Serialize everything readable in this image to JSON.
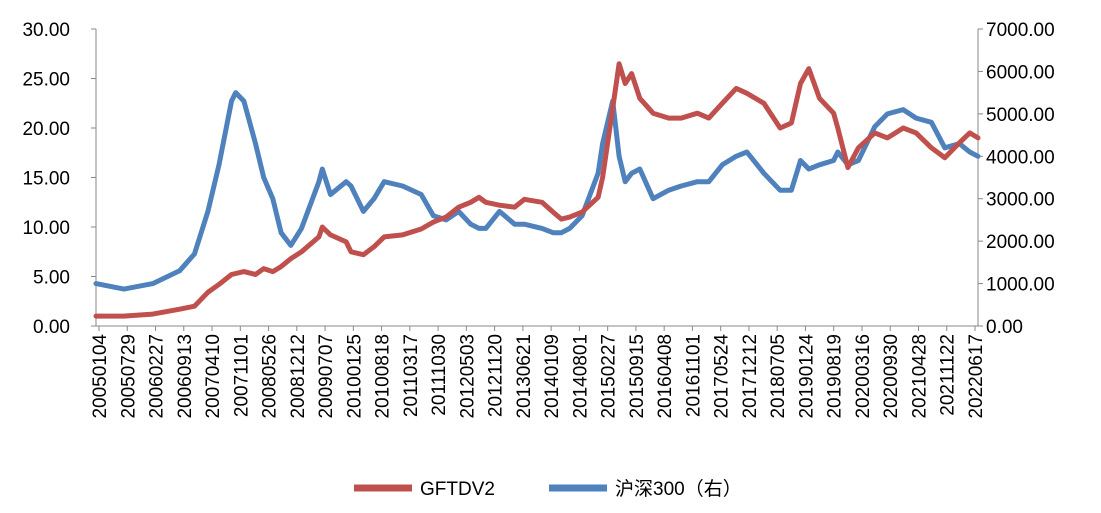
{
  "chart_data": {
    "type": "line",
    "title": "",
    "xlabel": "",
    "ylabel": "",
    "y2label": "",
    "grid": false,
    "legend_position": "bottom",
    "y_left": {
      "min": 0,
      "max": 30,
      "ticks": [
        "0.00",
        "5.00",
        "10.00",
        "15.00",
        "20.00",
        "25.00",
        "30.00"
      ]
    },
    "y_right": {
      "min": 0,
      "max": 7000,
      "ticks": [
        "0.00",
        "1000.00",
        "2000.00",
        "3000.00",
        "4000.00",
        "5000.00",
        "6000.00",
        "7000.00"
      ]
    },
    "x_tick_labels": [
      "20050104",
      "20050729",
      "20060227",
      "20060913",
      "20070410",
      "20071101",
      "20080526",
      "20081212",
      "20090707",
      "20100125",
      "20100818",
      "20110317",
      "20111030",
      "20120503",
      "20121120",
      "20130621",
      "20140109",
      "20140801",
      "20150227",
      "20150915",
      "20160408",
      "20161101",
      "20170524",
      "20171212",
      "20180705",
      "20190124",
      "20190819",
      "20200316",
      "20200930",
      "20210428",
      "20211122",
      "20220617"
    ],
    "series": [
      {
        "name": "GFTDV2",
        "axis": "left",
        "color": "#C0504D",
        "points": [
          [
            "20050104",
            1.0
          ],
          [
            "20050729",
            1.0
          ],
          [
            "20060227",
            1.2
          ],
          [
            "20060913",
            1.7
          ],
          [
            "20070101",
            2.0
          ],
          [
            "20070410",
            3.4
          ],
          [
            "20070701",
            4.2
          ],
          [
            "20071001",
            5.2
          ],
          [
            "20071101",
            5.3
          ],
          [
            "20080101",
            5.5
          ],
          [
            "20080326",
            5.2
          ],
          [
            "20080526",
            5.8
          ],
          [
            "20080801",
            5.5
          ],
          [
            "20081001",
            6.0
          ],
          [
            "20081212",
            6.8
          ],
          [
            "20090301",
            7.5
          ],
          [
            "20090707",
            9.0
          ],
          [
            "20090801",
            10.0
          ],
          [
            "20091001",
            9.2
          ],
          [
            "20100125",
            8.5
          ],
          [
            "20100301",
            7.5
          ],
          [
            "20100601",
            7.2
          ],
          [
            "20100818",
            8.0
          ],
          [
            "20101101",
            9.0
          ],
          [
            "20110317",
            9.2
          ],
          [
            "20110801",
            9.8
          ],
          [
            "20111030",
            10.5
          ],
          [
            "20120201",
            11.0
          ],
          [
            "20120503",
            12.0
          ],
          [
            "20120801",
            12.5
          ],
          [
            "20121001",
            13.0
          ],
          [
            "20121120",
            12.5
          ],
          [
            "20130301",
            12.2
          ],
          [
            "20130621",
            12.0
          ],
          [
            "20130901",
            12.8
          ],
          [
            "20140109",
            12.5
          ],
          [
            "20140401",
            11.5
          ],
          [
            "20140601",
            10.8
          ],
          [
            "20140801",
            11.0
          ],
          [
            "20141101",
            11.5
          ],
          [
            "20150227",
            13.0
          ],
          [
            "20150401",
            15.0
          ],
          [
            "20150615",
            22.0
          ],
          [
            "20150801",
            26.5
          ],
          [
            "20150915",
            24.5
          ],
          [
            "20151101",
            25.5
          ],
          [
            "20160101",
            23.0
          ],
          [
            "20160408",
            21.5
          ],
          [
            "20160801",
            21.0
          ],
          [
            "20161101",
            21.0
          ],
          [
            "20170301",
            21.5
          ],
          [
            "20170524",
            21.0
          ],
          [
            "20170901",
            22.5
          ],
          [
            "20171212",
            24.0
          ],
          [
            "20180301",
            23.5
          ],
          [
            "20180705",
            22.5
          ],
          [
            "20181101",
            20.0
          ],
          [
            "20190124",
            20.5
          ],
          [
            "20190401",
            24.5
          ],
          [
            "20190601",
            26.0
          ],
          [
            "20190819",
            23.0
          ],
          [
            "20191201",
            21.5
          ],
          [
            "20200101",
            20.0
          ],
          [
            "20200316",
            16.0
          ],
          [
            "20200601",
            18.0
          ],
          [
            "20200930",
            19.5
          ],
          [
            "20210101",
            19.0
          ],
          [
            "20210428",
            20.0
          ],
          [
            "20210801",
            19.5
          ],
          [
            "20211122",
            18.0
          ],
          [
            "20220301",
            17.0
          ],
          [
            "20220617",
            18.5
          ],
          [
            "20220901",
            19.5
          ],
          [
            "20221101",
            19.0
          ]
        ]
      },
      {
        "name": "沪深300（右）",
        "axis": "right",
        "color": "#4F81BD",
        "points": [
          [
            "20050104",
            1000
          ],
          [
            "20050729",
            870
          ],
          [
            "20060227",
            1000
          ],
          [
            "20060913",
            1300
          ],
          [
            "20070101",
            1700
          ],
          [
            "20070410",
            2700
          ],
          [
            "20070701",
            3800
          ],
          [
            "20071001",
            5300
          ],
          [
            "20071101",
            5500
          ],
          [
            "20080101",
            5300
          ],
          [
            "20080326",
            4300
          ],
          [
            "20080526",
            3500
          ],
          [
            "20080801",
            3000
          ],
          [
            "20081001",
            2200
          ],
          [
            "20081212",
            1900
          ],
          [
            "20090301",
            2300
          ],
          [
            "20090707",
            3400
          ],
          [
            "20090801",
            3700
          ],
          [
            "20091001",
            3100
          ],
          [
            "20100125",
            3400
          ],
          [
            "20100301",
            3300
          ],
          [
            "20100601",
            2700
          ],
          [
            "20100818",
            3000
          ],
          [
            "20101101",
            3400
          ],
          [
            "20110317",
            3300
          ],
          [
            "20110801",
            3100
          ],
          [
            "20111030",
            2600
          ],
          [
            "20120201",
            2500
          ],
          [
            "20120503",
            2700
          ],
          [
            "20120801",
            2400
          ],
          [
            "20121001",
            2300
          ],
          [
            "20121120",
            2300
          ],
          [
            "20130301",
            2700
          ],
          [
            "20130621",
            2400
          ],
          [
            "20130901",
            2400
          ],
          [
            "20140109",
            2300
          ],
          [
            "20140401",
            2200
          ],
          [
            "20140601",
            2200
          ],
          [
            "20140801",
            2300
          ],
          [
            "20141101",
            2600
          ],
          [
            "20150227",
            3600
          ],
          [
            "20150401",
            4300
          ],
          [
            "20150615",
            5300
          ],
          [
            "20150801",
            4000
          ],
          [
            "20150915",
            3400
          ],
          [
            "20151101",
            3600
          ],
          [
            "20160101",
            3700
          ],
          [
            "20160408",
            3000
          ],
          [
            "20160801",
            3200
          ],
          [
            "20161101",
            3300
          ],
          [
            "20170301",
            3400
          ],
          [
            "20170524",
            3400
          ],
          [
            "20170901",
            3800
          ],
          [
            "20171212",
            4000
          ],
          [
            "20180301",
            4100
          ],
          [
            "20180705",
            3600
          ],
          [
            "20181101",
            3200
          ],
          [
            "20190124",
            3200
          ],
          [
            "20190401",
            3900
          ],
          [
            "20190601",
            3700
          ],
          [
            "20190819",
            3800
          ],
          [
            "20191201",
            3900
          ],
          [
            "20200101",
            4100
          ],
          [
            "20200316",
            3800
          ],
          [
            "20200601",
            3900
          ],
          [
            "20200930",
            4700
          ],
          [
            "20210101",
            5000
          ],
          [
            "20210428",
            5100
          ],
          [
            "20210801",
            4900
          ],
          [
            "20211122",
            4800
          ],
          [
            "20220301",
            4200
          ],
          [
            "20220617",
            4300
          ],
          [
            "20220901",
            4100
          ],
          [
            "20221101",
            4000
          ]
        ]
      }
    ]
  }
}
